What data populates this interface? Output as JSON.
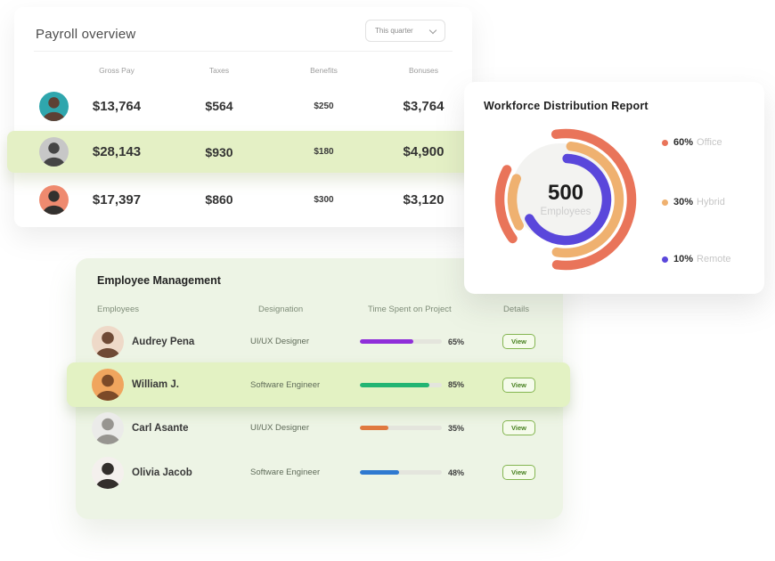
{
  "payroll": {
    "title": "Payroll overview",
    "filter_label": "This quarter",
    "columns": [
      "Gross Pay",
      "Taxes",
      "Benefits",
      "Bonuses"
    ],
    "rows": [
      {
        "gross": "$13,764",
        "taxes": "$564",
        "benefits": "$250",
        "bonuses": "$3,764",
        "highlighted": false,
        "avatar": {
          "bg": "#2fa6ad",
          "fg": "#5d4034"
        }
      },
      {
        "gross": "$28,143",
        "taxes": "$930",
        "benefits": "$180",
        "bonuses": "$4,900",
        "highlighted": true,
        "avatar": {
          "bg": "#c7c7c7",
          "fg": "#454545"
        }
      },
      {
        "gross": "$17,397",
        "taxes": "$860",
        "benefits": "$300",
        "bonuses": "$3,120",
        "highlighted": false,
        "avatar": {
          "bg": "#ef8a6f",
          "fg": "#33312f"
        }
      }
    ],
    "highlight_color": "#e4f0c5"
  },
  "workforce": {
    "title": "Workforce Distribution Report",
    "center_value": "500",
    "center_label": "Employees",
    "legend": [
      {
        "pct": "60%",
        "label": "Office",
        "color": "#e9745a"
      },
      {
        "pct": "30%",
        "label": "Hybrid",
        "color": "#efb170"
      },
      {
        "pct": "10%",
        "label": "Remote",
        "color": "#5a47db"
      }
    ]
  },
  "chart_data": {
    "type": "pie",
    "title": "Workforce Distribution Report",
    "categories": [
      "Office",
      "Hybrid",
      "Remote"
    ],
    "values": [
      60,
      30,
      10
    ],
    "unit": "%",
    "center_value": 500,
    "center_label": "Employees",
    "colors": [
      "#e9745a",
      "#efb170",
      "#5a47db"
    ],
    "legend_position": "right",
    "inner_circle_color": "#f3f3f1",
    "stroke_width": 10.5,
    "rings": [
      {
        "name": "Office",
        "color": "#e9745a",
        "radius": 74,
        "segments": [
          {
            "start": -8,
            "span": 196
          },
          {
            "start": 234,
            "span": 63
          }
        ]
      },
      {
        "name": "Hybrid",
        "color": "#efb170",
        "radius": 60,
        "segments": [
          {
            "start": 6,
            "span": 184
          },
          {
            "start": 241,
            "span": 52
          }
        ]
      },
      {
        "name": "Remote",
        "color": "#5a47db",
        "radius": 46,
        "segments": [
          {
            "start": 2,
            "span": 240
          }
        ]
      }
    ]
  },
  "employees": {
    "title": "Employee Management",
    "columns": [
      "Employees",
      "Designation",
      "Time Spent on Project",
      "Details"
    ],
    "rows": [
      {
        "name": "Audrey Pena",
        "designation": "UI/UX Designer",
        "progress_pct": 65,
        "progress_label": "65%",
        "bar_color": "#8f2fd9",
        "action": "View",
        "highlighted": false,
        "avatar": {
          "bg": "#eed9c8",
          "fg": "#6f4a36"
        }
      },
      {
        "name": "William J.",
        "designation": "Software Engineer",
        "progress_pct": 85,
        "progress_label": "85%",
        "bar_color": "#22b573",
        "action": "View",
        "highlighted": true,
        "avatar": {
          "bg": "#f0a55e",
          "fg": "#7c4a28"
        }
      },
      {
        "name": "Carl Asante",
        "designation": "UI/UX Designer",
        "progress_pct": 35,
        "progress_label": "35%",
        "bar_color": "#e0793f",
        "action": "View",
        "highlighted": false,
        "avatar": {
          "bg": "#ebebe9",
          "fg": "#979590"
        }
      },
      {
        "name": "Olivia Jacob",
        "designation": "Software Engineer",
        "progress_pct": 48,
        "progress_label": "48%",
        "bar_color": "#2f79d0",
        "action": "View",
        "highlighted": false,
        "avatar": {
          "bg": "#f4f0ed",
          "fg": "#332e2c"
        }
      }
    ],
    "highlight_color": "#e3f2c3"
  }
}
